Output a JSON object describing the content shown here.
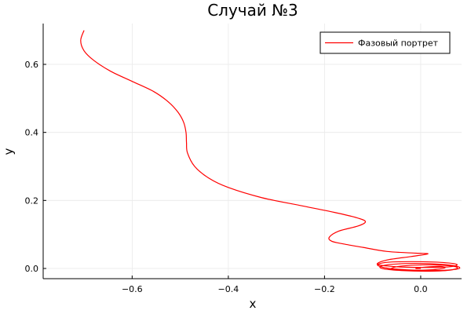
{
  "chart_data": {
    "type": "line",
    "title": "Случай №3",
    "xlabel": "x",
    "ylabel": "y",
    "xlim": [
      -0.785,
      0.085
    ],
    "ylim": [
      -0.03,
      0.72
    ],
    "xticks": [
      -0.6,
      -0.4,
      -0.2,
      0.0
    ],
    "xtick_labels": [
      "−0.6",
      "−0.4",
      "−0.2",
      "0.0"
    ],
    "yticks": [
      0.0,
      0.2,
      0.4,
      0.6
    ],
    "ytick_labels": [
      "0.0",
      "0.2",
      "0.4",
      "0.6"
    ],
    "grid": true,
    "legend": "top-right",
    "colors": {
      "series": "#ff0000",
      "grid": "#e9e9e9",
      "axis": "#000000"
    },
    "series": [
      {
        "name": "Фазовый портрет",
        "x": [
          -0.7,
          -0.707,
          -0.7,
          -0.68,
          -0.645,
          -0.6,
          -0.555,
          -0.525,
          -0.505,
          -0.493,
          -0.488,
          -0.487,
          -0.485,
          -0.47,
          -0.44,
          -0.4,
          -0.33,
          -0.25,
          -0.18,
          -0.135,
          -0.115,
          -0.13,
          -0.17,
          -0.19,
          -0.185,
          -0.16,
          -0.12,
          -0.07,
          -0.01,
          0.015,
          -0.02,
          -0.07,
          -0.09,
          -0.05,
          0.01,
          0.06,
          0.075,
          0.04,
          -0.02,
          -0.07,
          -0.09,
          -0.065,
          -0.01,
          0.05,
          0.08,
          0.07,
          0.02,
          -0.04,
          -0.08,
          -0.08,
          -0.04,
          0.02,
          0.065,
          0.075,
          0.04,
          -0.01,
          -0.05,
          -0.06,
          -0.03,
          0.02,
          0.05,
          0.04,
          0.01,
          -0.01,
          0.0
        ],
        "y": [
          0.7,
          0.67,
          0.64,
          0.612,
          0.58,
          0.55,
          0.52,
          0.49,
          0.46,
          0.43,
          0.4,
          0.37,
          0.34,
          0.3,
          0.265,
          0.238,
          0.208,
          0.185,
          0.165,
          0.15,
          0.138,
          0.125,
          0.11,
          0.092,
          0.08,
          0.072,
          0.062,
          0.05,
          0.045,
          0.043,
          0.035,
          0.025,
          0.012,
          0.005,
          0.003,
          0.005,
          0.012,
          0.018,
          0.02,
          0.018,
          0.01,
          0.0,
          -0.005,
          -0.005,
          0.0,
          0.008,
          0.014,
          0.014,
          0.008,
          0.0,
          -0.006,
          -0.008,
          -0.004,
          0.004,
          0.01,
          0.01,
          0.005,
          -0.002,
          -0.006,
          -0.004,
          0.002,
          0.006,
          0.004,
          0.0,
          0.0
        ]
      }
    ]
  }
}
